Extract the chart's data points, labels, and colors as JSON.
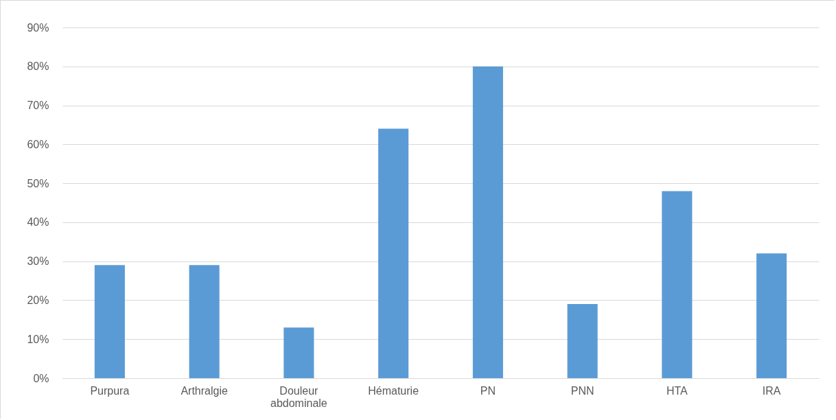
{
  "chart_data": {
    "type": "bar",
    "categories": [
      "Purpura",
      "Arthralgie",
      "Douleur abdominale",
      "Hématurie",
      "PN",
      "PNN",
      "HTA",
      "IRA"
    ],
    "values": [
      29,
      29,
      13,
      64,
      80,
      19,
      48,
      32
    ],
    "color": "#5b9bd5",
    "ylim": [
      0,
      90
    ],
    "yticks": [
      {
        "value": 0,
        "label": "0%"
      },
      {
        "value": 10,
        "label": "10%"
      },
      {
        "value": 20,
        "label": "20%"
      },
      {
        "value": 30,
        "label": "30%"
      },
      {
        "value": 40,
        "label": "40%"
      },
      {
        "value": 50,
        "label": "50%"
      },
      {
        "value": 60,
        "label": "60%"
      },
      {
        "value": 70,
        "label": "70%"
      },
      {
        "value": 80,
        "label": "80%"
      },
      {
        "value": 90,
        "label": "90%"
      }
    ],
    "grid": "y"
  }
}
